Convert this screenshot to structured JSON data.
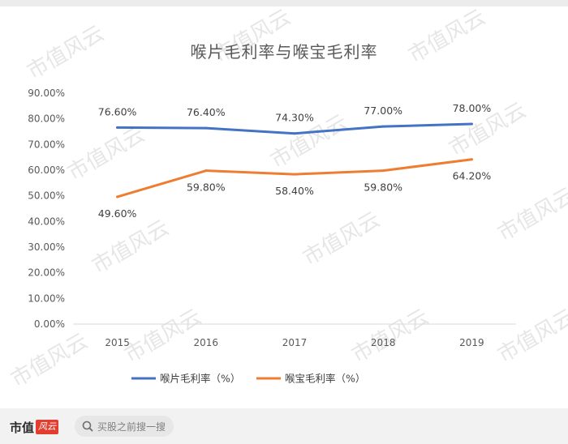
{
  "chart_data": {
    "type": "line",
    "title": "喉片毛利率与喉宝毛利率",
    "categories": [
      "2015",
      "2016",
      "2017",
      "2018",
      "2019"
    ],
    "ylim": [
      0,
      90
    ],
    "yticks": [
      "0.00%",
      "10.00%",
      "20.00%",
      "30.00%",
      "40.00%",
      "50.00%",
      "60.00%",
      "70.00%",
      "80.00%",
      "90.00%"
    ],
    "grid": false,
    "legend": "bottom",
    "series": [
      {
        "name": "喉片毛利率（%）",
        "values": [
          76.6,
          76.4,
          74.3,
          77.0,
          78.0
        ],
        "labels": [
          "76.60%",
          "76.40%",
          "74.30%",
          "77.00%",
          "78.00%"
        ],
        "color": "#4472c4"
      },
      {
        "name": "喉宝毛利率（%）",
        "values": [
          49.6,
          59.8,
          58.4,
          59.8,
          64.2
        ],
        "labels": [
          "49.60%",
          "59.80%",
          "58.40%",
          "59.80%",
          "64.20%"
        ],
        "color": "#ed7d31"
      }
    ]
  },
  "watermark_text": "市值风云",
  "footer": {
    "logo_text": "市值",
    "logo_badge": "风云",
    "search_placeholder": "买股之前搜一搜"
  }
}
